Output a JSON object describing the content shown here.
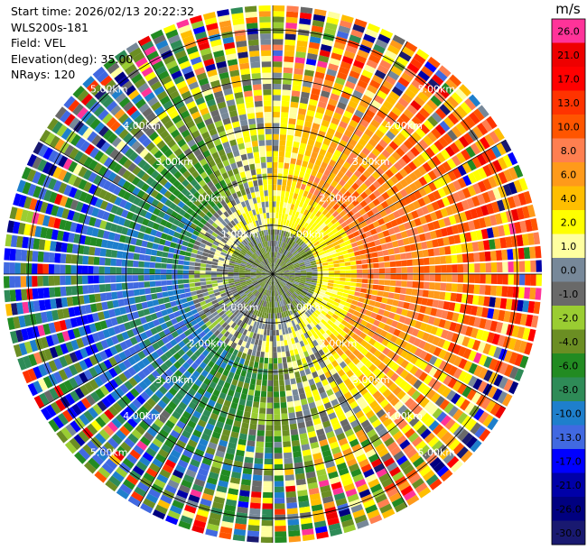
{
  "info": {
    "start_time": "Start time: 2026/02/13 20:22:32",
    "instrument": "WLS200s-181",
    "field": "Field: VEL",
    "elevation": "Elevation(deg): 35.00",
    "nrays": "NRays: 120"
  },
  "chart_data": {
    "type": "heatmap",
    "projection": "polar",
    "n_rays": 120,
    "max_range_km": 5.5,
    "range_rings_km": [
      1,
      2,
      3,
      4,
      5
    ],
    "range_labels": [
      "1.00km",
      "2.00km",
      "3.00km",
      "4.00km",
      "5.00km"
    ],
    "field": "VEL",
    "colorbar": {
      "unit": "m/s",
      "levels": [
        {
          "label": "26.0",
          "color": "#ff3399"
        },
        {
          "label": "21.0",
          "color": "#ee0000"
        },
        {
          "label": "17.0",
          "color": "#ff0000"
        },
        {
          "label": "13.0",
          "color": "#ff3300"
        },
        {
          "label": "10.0",
          "color": "#ff5500"
        },
        {
          "label": "8.0",
          "color": "#ff7f50"
        },
        {
          "label": "6.0",
          "color": "#ff9a1a"
        },
        {
          "label": "4.0",
          "color": "#ffbe00"
        },
        {
          "label": "2.0",
          "color": "#ffff00"
        },
        {
          "label": "1.0",
          "color": "#ffffa0"
        },
        {
          "label": "0.0",
          "color": "#778899"
        },
        {
          "label": "-1.0",
          "color": "#696969"
        },
        {
          "label": "-2.0",
          "color": "#9acd32"
        },
        {
          "label": "-4.0",
          "color": "#6b8e23"
        },
        {
          "label": "-6.0",
          "color": "#228b22"
        },
        {
          "label": "-8.0",
          "color": "#2e8b57"
        },
        {
          "label": "-10.0",
          "color": "#1e7fcc"
        },
        {
          "label": "-13.0",
          "color": "#4169e1"
        },
        {
          "label": "-17.0",
          "color": "#0000ff"
        },
        {
          "label": "-21.0",
          "color": "#0000a8"
        },
        {
          "label": "-26.0",
          "color": "#000080"
        },
        {
          "label": "-30.0",
          "color": "#191970"
        }
      ]
    }
  }
}
